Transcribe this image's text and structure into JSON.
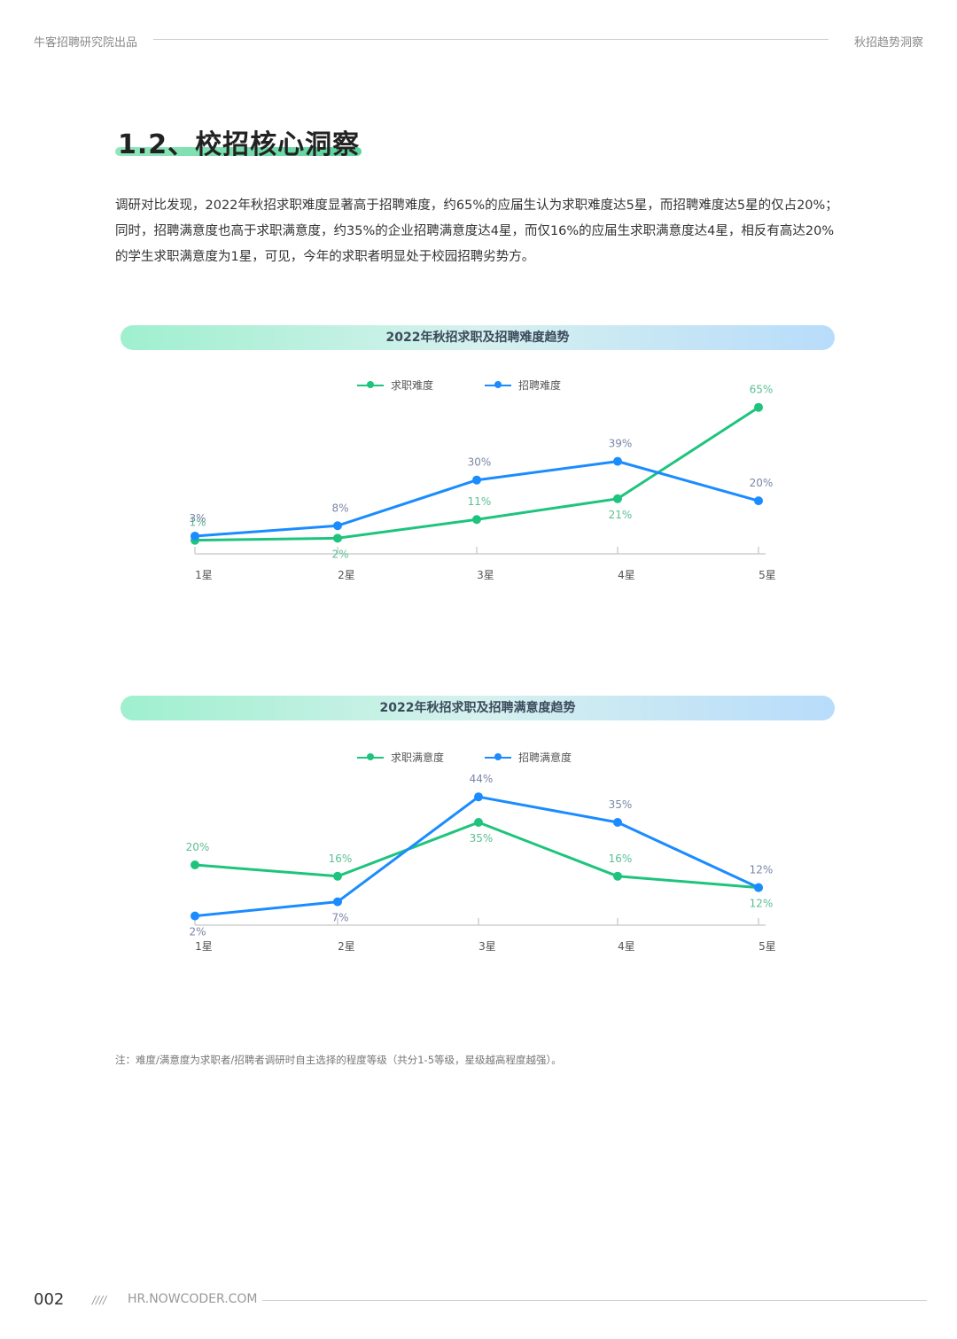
{
  "header": {
    "left": "牛客招聘研究院出品",
    "right": "秋招趋势洞察"
  },
  "section": {
    "title": "1.2、校招核心洞察",
    "body": "调研对比发现，2022年秋招求职难度显著高于招聘难度，约65%的应届生认为求职难度达5星，而招聘难度达5星的仅占20%；同时，招聘满意度也高于求职满意度，约35%的企业招聘满意度达4星，而仅16%的应届生求职满意度达4星，相反有高达20%的学生求职满意度为1星，可见，今年的求职者明显处于校园招聘劣势方。"
  },
  "colors": {
    "green": "#1ec47d",
    "blue": "#1a8cff",
    "green_label": "#5bbf93",
    "blue_label": "#7a86a8",
    "axis": "#cfcfcf"
  },
  "chart_data": [
    {
      "type": "line",
      "title": "2022年秋招求职及招聘难度趋势",
      "categories": [
        "1星",
        "2星",
        "3星",
        "4星",
        "5星"
      ],
      "series": [
        {
          "name": "求职难度",
          "values": [
            1,
            2,
            11,
            21,
            65
          ],
          "labels": [
            "1%",
            "2%",
            "11%",
            "21%",
            "65%"
          ]
        },
        {
          "name": "招聘难度",
          "values": [
            3,
            8,
            30,
            39,
            20
          ],
          "labels": [
            "3%",
            "8%",
            "30%",
            "39%",
            "20%"
          ]
        }
      ],
      "ylim": [
        0,
        70
      ],
      "grid": false,
      "legend": "top-center"
    },
    {
      "type": "line",
      "title": "2022年秋招求职及招聘满意度趋势",
      "categories": [
        "1星",
        "2星",
        "3星",
        "4星",
        "5星"
      ],
      "series": [
        {
          "name": "求职满意度",
          "values": [
            20,
            16,
            35,
            16,
            12
          ],
          "labels": [
            "20%",
            "16%",
            "35%",
            "16%",
            "12%"
          ]
        },
        {
          "name": "招聘满意度",
          "values": [
            2,
            7,
            44,
            35,
            12
          ],
          "labels": [
            "2%",
            "7%",
            "44%",
            "35%",
            "12%"
          ]
        }
      ],
      "ylim": [
        0,
        50
      ],
      "grid": false,
      "legend": "top-center"
    }
  ],
  "note": "注：难度/满意度为求职者/招聘者调研时自主选择的程度等级（共分1-5等级，星级越高程度越强）。",
  "footer": {
    "page": "002",
    "slashes": "////",
    "url": "HR.NOWCODER.COM"
  }
}
